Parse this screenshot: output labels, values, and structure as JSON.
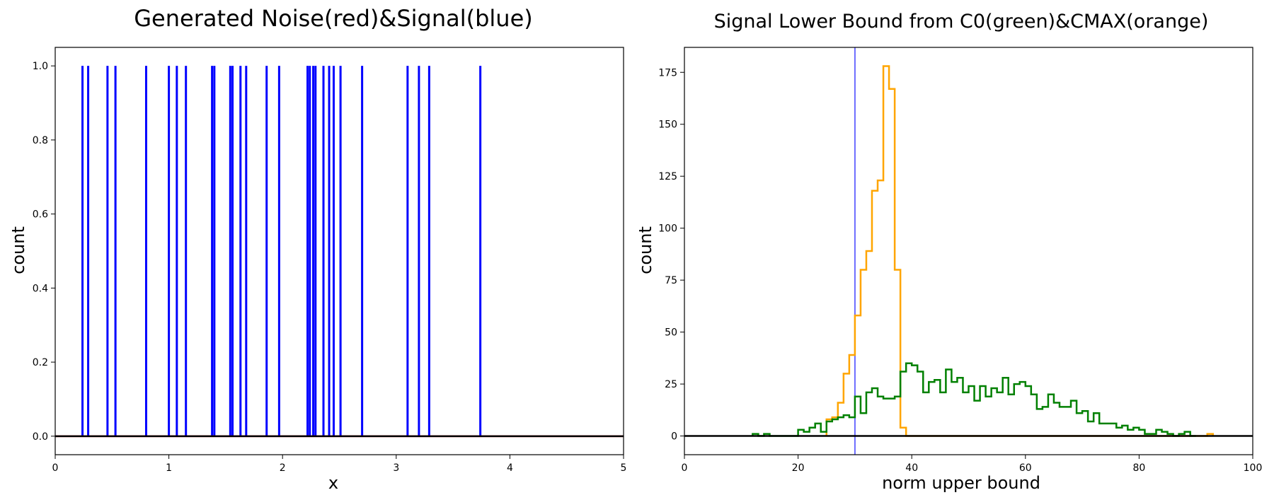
{
  "chart_data": [
    {
      "type": "line",
      "title": "Generated Noise(red)&Signal(blue)",
      "xlabel": "x",
      "ylabel": "count",
      "xlim": [
        0,
        5
      ],
      "ylim": [
        -0.05,
        1.05
      ],
      "xticks": [
        0,
        1,
        2,
        3,
        4,
        5
      ],
      "yticks": [
        0.0,
        0.2,
        0.4,
        0.6,
        0.8,
        1.0
      ],
      "xtick_labels": [
        "0",
        "1",
        "2",
        "3",
        "4",
        "5"
      ],
      "ytick_labels": [
        "0.0",
        "0.2",
        "0.4",
        "0.6",
        "0.8",
        "1.0"
      ],
      "grid": false,
      "legend": "none",
      "series": [
        {
          "color": "#0000ff",
          "style": "spikes",
          "x": [
            0.24,
            0.29,
            0.46,
            0.53,
            0.8,
            1.0,
            1.07,
            1.15,
            1.38,
            1.4,
            1.54,
            1.56,
            1.63,
            1.68,
            1.86,
            1.97,
            2.22,
            2.24,
            2.27,
            2.29,
            2.36,
            2.41,
            2.45,
            2.51,
            2.7,
            3.1,
            3.2,
            3.29,
            3.74
          ],
          "values": [
            1,
            1,
            1,
            1,
            1,
            1,
            1,
            1,
            1,
            1,
            1,
            1,
            1,
            1,
            1,
            1,
            1,
            1,
            1,
            1,
            1,
            1,
            1,
            1,
            1,
            1,
            1,
            1,
            1
          ]
        },
        {
          "color": "#ff0000",
          "style": "baseline",
          "x": [
            0,
            5
          ],
          "values": [
            0,
            0
          ]
        }
      ],
      "hlines": [
        {
          "y": 0,
          "color": "#000000"
        }
      ]
    },
    {
      "type": "line",
      "title": "Signal Lower Bound from C0(green)&CMAX(orange)",
      "xlabel": "norm upper bound",
      "ylabel": "count",
      "xlim": [
        0,
        100
      ],
      "ylim": [
        -9,
        187
      ],
      "xticks": [
        0,
        20,
        40,
        60,
        80,
        100
      ],
      "yticks": [
        0,
        25,
        50,
        75,
        100,
        125,
        150,
        175
      ],
      "xtick_labels": [
        "0",
        "20",
        "40",
        "60",
        "80",
        "100"
      ],
      "ytick_labels": [
        "0",
        "25",
        "50",
        "75",
        "100",
        "125",
        "150",
        "175"
      ],
      "grid": false,
      "legend": "none",
      "series": [
        {
          "color": "#ffa500",
          "style": "step",
          "x": [
            25,
            26,
            27,
            28,
            29,
            30,
            31,
            32,
            33,
            34,
            35,
            36,
            37,
            38,
            39,
            40,
            91,
            92,
            93
          ],
          "values": [
            8,
            9,
            16,
            30,
            39,
            58,
            80,
            89,
            118,
            123,
            178,
            167,
            80,
            4,
            0,
            0,
            0,
            1,
            0
          ]
        },
        {
          "color": "#008000",
          "style": "step",
          "x": [
            12,
            13,
            14,
            15,
            16,
            17,
            18,
            19,
            20,
            21,
            22,
            23,
            24,
            25,
            26,
            27,
            28,
            29,
            30,
            31,
            32,
            33,
            34,
            35,
            36,
            37,
            38,
            39,
            40,
            41,
            42,
            43,
            44,
            45,
            46,
            47,
            48,
            49,
            50,
            51,
            52,
            53,
            54,
            55,
            56,
            57,
            58,
            59,
            60,
            61,
            62,
            63,
            64,
            65,
            66,
            67,
            68,
            69,
            70,
            71,
            72,
            73,
            74,
            75,
            76,
            77,
            78,
            79,
            80,
            81,
            82,
            83,
            84,
            85,
            86,
            87,
            88,
            89,
            90
          ],
          "values": [
            1,
            0,
            1,
            0,
            0,
            0,
            0,
            0,
            3,
            2,
            4,
            6,
            2,
            7,
            8,
            9,
            10,
            9,
            19,
            11,
            21,
            23,
            19,
            18,
            18,
            19,
            31,
            35,
            34,
            31,
            21,
            26,
            27,
            21,
            32,
            26,
            28,
            21,
            24,
            17,
            24,
            19,
            23,
            21,
            28,
            20,
            25,
            26,
            24,
            20,
            13,
            14,
            20,
            16,
            14,
            14,
            17,
            11,
            12,
            7,
            11,
            6,
            6,
            6,
            4,
            5,
            3,
            4,
            3,
            1,
            1,
            3,
            2,
            1,
            0,
            1,
            2,
            0,
            0
          ]
        }
      ],
      "hlines": [
        {
          "y": 0,
          "color": "#000000"
        }
      ],
      "vlines": [
        {
          "x": 30,
          "color": "#6b6bff"
        }
      ]
    }
  ]
}
